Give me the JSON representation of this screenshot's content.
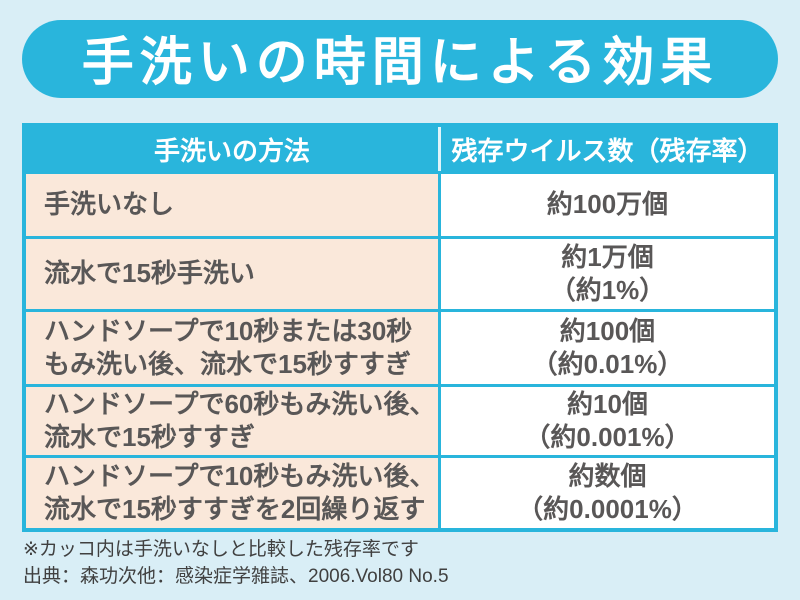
{
  "page": {
    "background_color": "#d9eef6",
    "accent_color": "#29b5dc",
    "method_cell_color": "#fae8da",
    "value_cell_color": "#ffffff",
    "text_color": "#595757"
  },
  "banner": {
    "title": "手洗いの時間による効果"
  },
  "table": {
    "headers": {
      "method": "手洗いの方法",
      "result": "残存ウイルス数（残存率）"
    },
    "rows": [
      {
        "method_line1": "手洗いなし",
        "method_line2": "",
        "count": "約100万個",
        "rate": ""
      },
      {
        "method_line1": "流水で15秒手洗い",
        "method_line2": "",
        "count": "約1万個",
        "rate": "（約1%）"
      },
      {
        "method_line1": "ハンドソープで10秒または30秒",
        "method_line2": "もみ洗い後、流水で15秒すすぎ",
        "count": "約100個",
        "rate": "（約0.01%）"
      },
      {
        "method_line1": "ハンドソープで60秒もみ洗い後、",
        "method_line2": "流水で15秒すすぎ",
        "count": "約10個",
        "rate": "（約0.001%）"
      },
      {
        "method_line1": "ハンドソープで10秒もみ洗い後、",
        "method_line2": "流水で15秒すすぎを2回繰り返す",
        "count": "約数個",
        "rate": "（約0.0001%）"
      }
    ]
  },
  "footer": {
    "note": "※カッコ内は手洗いなしと比較した残存率です",
    "source": "出典：森功次他：感染症学雑誌、2006.Vol80 No.5"
  },
  "chart_data": {
    "type": "table",
    "title": "手洗いの時間による効果",
    "columns": [
      "手洗いの方法",
      "残存ウイルス数（残存率）"
    ],
    "rows": [
      [
        "手洗いなし",
        "約100万個"
      ],
      [
        "流水で15秒手洗い",
        "約1万個（約1%）"
      ],
      [
        "ハンドソープで10秒または30秒もみ洗い後、流水で15秒すすぎ",
        "約100個（約0.01%）"
      ],
      [
        "ハンドソープで60秒もみ洗い後、流水で15秒すすぎ",
        "約10個（約0.001%）"
      ],
      [
        "ハンドソープで10秒もみ洗い後、流水で15秒すすぎを2回繰り返す",
        "約数個（約0.0001%）"
      ]
    ],
    "notes": [
      "※カッコ内は手洗いなしと比較した残存率です",
      "出典：森功次他：感染症学雑誌、2006.Vol80 No.5"
    ]
  }
}
